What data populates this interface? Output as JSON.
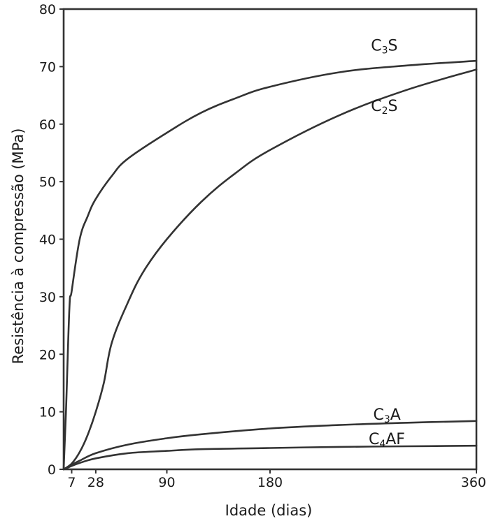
{
  "chart_data": {
    "type": "line",
    "title": "",
    "xlabel": "Idade (dias)",
    "ylabel": "Resistência à compressão (MPa)",
    "xlim": [
      0,
      360
    ],
    "ylim": [
      0,
      80
    ],
    "xticks": [
      7,
      28,
      90,
      180,
      360
    ],
    "yticks": [
      0,
      10,
      20,
      30,
      40,
      50,
      60,
      70,
      80
    ],
    "grid": false,
    "legend": "none",
    "series": [
      {
        "name": "C3S",
        "label_main": "C",
        "label_sub": "3",
        "label_tail": "S",
        "x": [
          0,
          2,
          5,
          7,
          14,
          21,
          28,
          42,
          56,
          90,
          120,
          150,
          180,
          240,
          300,
          360
        ],
        "y": [
          0,
          10,
          28,
          31,
          40,
          44,
          47,
          51,
          54,
          58.5,
          62,
          64.5,
          66.5,
          69,
          70.2,
          71
        ]
      },
      {
        "name": "C2S",
        "label_main": "C",
        "label_sub": "2",
        "label_tail": "S",
        "x": [
          0,
          7,
          14,
          21,
          28,
          35,
          42,
          56,
          70,
          90,
          120,
          150,
          180,
          240,
          300,
          360
        ],
        "y": [
          0,
          1,
          3,
          6,
          10,
          15,
          22,
          29,
          34.5,
          40,
          46.5,
          51.5,
          55.5,
          61.5,
          66,
          69.5
        ]
      },
      {
        "name": "C3A",
        "label_main": "C",
        "label_sub": "3",
        "label_tail": "A",
        "x": [
          0,
          7,
          14,
          28,
          56,
          90,
          120,
          180,
          240,
          300,
          360
        ],
        "y": [
          0,
          0.8,
          1.5,
          2.8,
          4.3,
          5.4,
          6.1,
          7.1,
          7.7,
          8.1,
          8.4
        ]
      },
      {
        "name": "C4AF",
        "label_main": "C",
        "label_sub": "4",
        "label_tail": "AF",
        "x": [
          0,
          7,
          14,
          28,
          56,
          90,
          120,
          180,
          240,
          300,
          360
        ],
        "y": [
          0,
          0.6,
          1.1,
          1.9,
          2.8,
          3.2,
          3.5,
          3.7,
          3.9,
          4.0,
          4.1
        ]
      }
    ]
  }
}
